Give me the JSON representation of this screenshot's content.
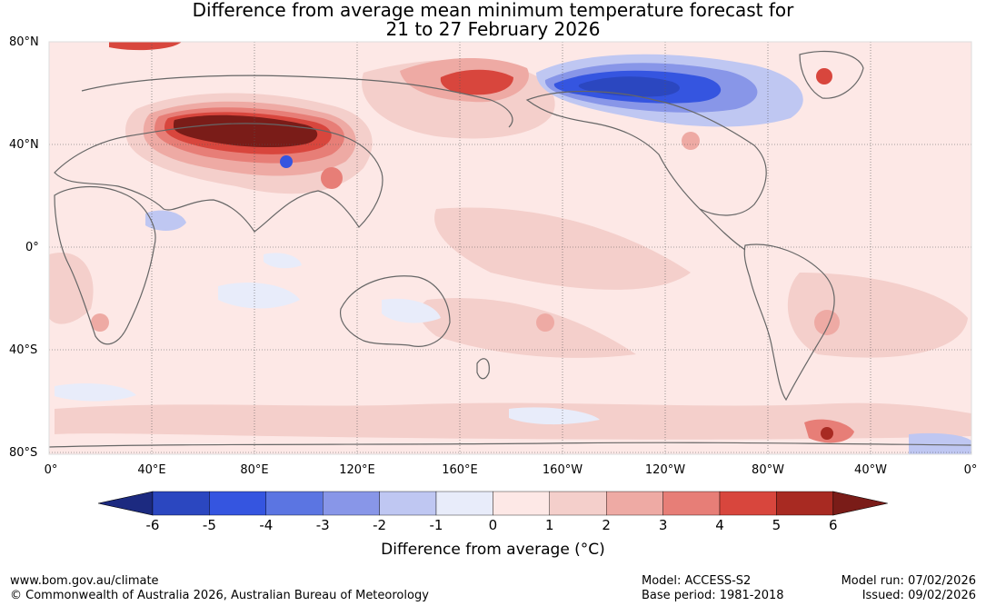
{
  "title": {
    "line1": "Difference from average mean minimum temperature forecast for",
    "line2": "21 to 27 February 2026"
  },
  "axes": {
    "lat_labels": [
      "80°N",
      "40°N",
      "0°",
      "40°S",
      "80°S"
    ],
    "lon_labels": [
      "0°",
      "40°E",
      "80°E",
      "120°E",
      "160°E",
      "160°W",
      "120°W",
      "80°W",
      "40°W",
      "0°"
    ]
  },
  "colorbar": {
    "ticks": [
      "-6",
      "-5",
      "-4",
      "-3",
      "-2",
      "-1",
      "0",
      "1",
      "2",
      "3",
      "4",
      "5",
      "6"
    ],
    "colors": [
      "#1c2a80",
      "#2b47c0",
      "#3555e0",
      "#5b75e2",
      "#8896e8",
      "#bfc7f2",
      "#e8ecfa",
      "#fde8e6",
      "#f4cfcb",
      "#eeaaa4",
      "#e77e77",
      "#d8463d",
      "#a82a22",
      "#7a1c18"
    ],
    "label": "Difference from average (°C)"
  },
  "footer": {
    "website": "www.bom.gov.au/climate",
    "copyright": "© Commonwealth of Australia 2026, Australian Bureau of Meteorology",
    "model": "Model: ACCESS-S2",
    "base_period": "Base period: 1981-2018",
    "model_run": "Model run: 07/02/2026",
    "issued": "Issued: 09/02/2026"
  }
}
